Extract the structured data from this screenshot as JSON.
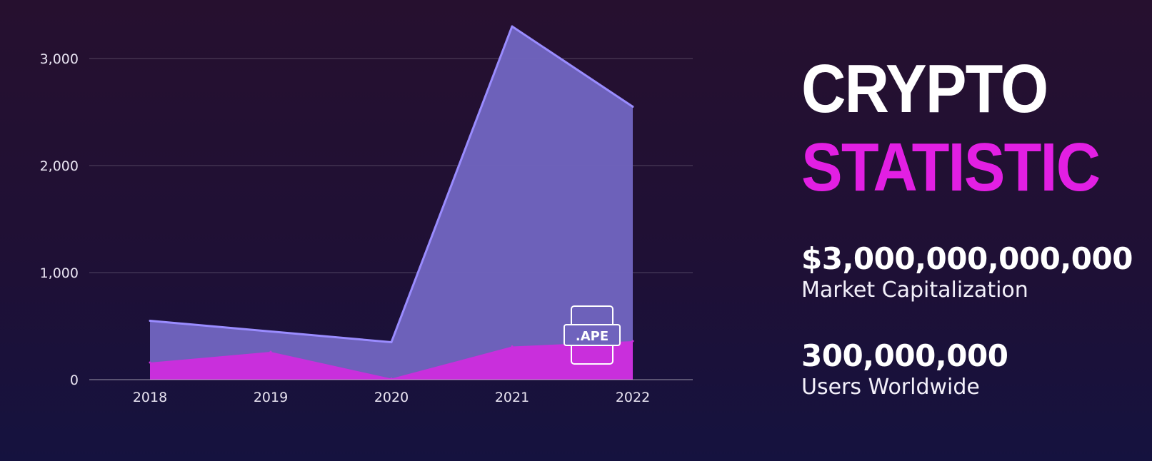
{
  "title": {
    "line1": "CRYPTO",
    "line2": "STATISTIC"
  },
  "stats": [
    {
      "value": "$3,000,000,000,000",
      "label": "Market Capitalization"
    },
    {
      "value": "300,000,000",
      "label": "Users Worldwide"
    }
  ],
  "badge_text": ".APE",
  "colors": {
    "title_white": "#ffffff",
    "title_accent": "#e21fe3",
    "series_back_fill": "#6f63bd",
    "series_back_line": "#9a8cff",
    "series_front_fill": "#c92fdc"
  },
  "chart_data": {
    "type": "area",
    "x": [
      "2018",
      "2019",
      "2020",
      "2021",
      "2022"
    ],
    "series": [
      {
        "values": [
          550,
          450,
          350,
          3300,
          2550
        ]
      },
      {
        "values": [
          160,
          260,
          10,
          310,
          360
        ]
      }
    ],
    "y_ticks": [
      "0",
      "1,000",
      "2,000",
      "3,000"
    ],
    "y_tick_values": [
      0,
      1000,
      2000,
      3000
    ],
    "ylim": [
      0,
      3300
    ],
    "grid": true,
    "legend": "none"
  }
}
